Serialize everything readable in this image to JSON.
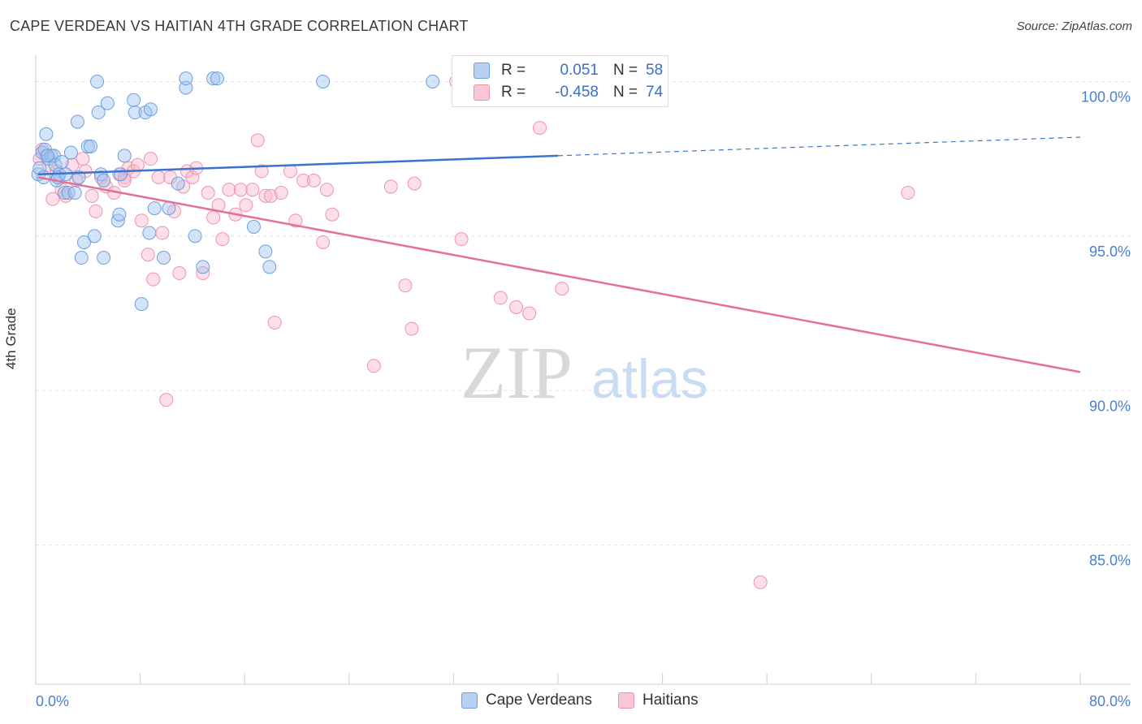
{
  "title": "CAPE VERDEAN VS HAITIAN 4TH GRADE CORRELATION CHART",
  "source": "Source: ZipAtlas.com",
  "watermark": {
    "zip": "ZIP",
    "atlas": "atlas"
  },
  "legend": {
    "rows": [
      {
        "r_label": "R =",
        "r_value": "0.051",
        "n_label": "N =",
        "n_value": "58"
      },
      {
        "r_label": "R =",
        "r_value": "-0.458",
        "n_label": "N =",
        "n_value": "74"
      }
    ]
  },
  "bottom_legend": {
    "series1": "Cape Verdeans",
    "series2": "Haitians"
  },
  "colors": {
    "blue": "#3a74d0",
    "pink": "#e4709a",
    "blue_fill": "#b8d1f3",
    "pink_fill": "#f9c6d5",
    "tick_label": "#4a80d0"
  },
  "chart_data": {
    "type": "scatter",
    "title": "CAPE VERDEAN VS HAITIAN 4TH GRADE CORRELATION CHART",
    "xlabel": "",
    "ylabel": "4th Grade",
    "xlim": [
      0,
      80
    ],
    "ylim": [
      80.5,
      100.8
    ],
    "x_tick_labels": [
      "0.0%",
      "80.0%"
    ],
    "y_ticks": [
      100,
      95,
      90,
      85
    ],
    "y_tick_labels": [
      "100.0%",
      "95.0%",
      "90.0%",
      "85.0%"
    ],
    "series": [
      {
        "name": "Cape Verdeans",
        "color": "#3a74d0",
        "R": 0.051,
        "N": 58,
        "trend": {
          "x1": 0.2,
          "y1": 97.0,
          "x2": 40,
          "y2": 97.6,
          "dash_to_x": 80,
          "dash_to_y": 98.2
        },
        "points": [
          [
            0.2,
            97.0
          ],
          [
            0.3,
            97.2
          ],
          [
            0.5,
            97.7
          ],
          [
            0.7,
            97.8
          ],
          [
            0.8,
            98.3
          ],
          [
            1.0,
            97.5
          ],
          [
            1.2,
            97.6
          ],
          [
            1.4,
            97.6
          ],
          [
            1.5,
            97.3
          ],
          [
            1.6,
            96.8
          ],
          [
            1.8,
            97.0
          ],
          [
            2.0,
            97.4
          ],
          [
            2.2,
            96.4
          ],
          [
            2.5,
            96.4
          ],
          [
            2.7,
            97.7
          ],
          [
            3.0,
            96.4
          ],
          [
            3.2,
            98.7
          ],
          [
            3.5,
            94.3
          ],
          [
            3.7,
            94.8
          ],
          [
            4.0,
            97.9
          ],
          [
            4.2,
            97.9
          ],
          [
            4.5,
            95.0
          ],
          [
            4.7,
            100.0
          ],
          [
            4.8,
            99.0
          ],
          [
            5.0,
            97.0
          ],
          [
            5.2,
            96.8
          ],
          [
            5.2,
            94.3
          ],
          [
            5.5,
            99.3
          ],
          [
            6.3,
            95.5
          ],
          [
            6.4,
            95.7
          ],
          [
            6.8,
            97.6
          ],
          [
            7.5,
            99.4
          ],
          [
            7.6,
            99.0
          ],
          [
            8.1,
            92.8
          ],
          [
            8.4,
            99.0
          ],
          [
            8.7,
            95.1
          ],
          [
            8.8,
            99.1
          ],
          [
            9.1,
            95.9
          ],
          [
            9.8,
            94.3
          ],
          [
            10.2,
            95.9
          ],
          [
            10.9,
            96.7
          ],
          [
            11.5,
            99.8
          ],
          [
            11.5,
            100.1
          ],
          [
            12.2,
            95.0
          ],
          [
            12.8,
            94.0
          ],
          [
            13.6,
            100.1
          ],
          [
            13.9,
            100.1
          ],
          [
            16.7,
            95.3
          ],
          [
            17.6,
            94.5
          ],
          [
            17.9,
            94.0
          ],
          [
            22.0,
            100.0
          ],
          [
            30.4,
            100.0
          ],
          [
            1.7,
            96.9
          ],
          [
            0.9,
            97.6
          ],
          [
            2.3,
            97.0
          ],
          [
            6.5,
            97.0
          ],
          [
            3.3,
            96.9
          ],
          [
            0.6,
            96.9
          ]
        ]
      },
      {
        "name": "Haitians",
        "color": "#e4709a",
        "R": -0.458,
        "N": 74,
        "trend": {
          "x1": 0.2,
          "y1": 96.9,
          "x2": 80,
          "y2": 90.6
        },
        "points": [
          [
            0.3,
            97.5
          ],
          [
            0.5,
            97.8
          ],
          [
            0.8,
            97.6
          ],
          [
            1.0,
            97.3
          ],
          [
            1.3,
            96.2
          ],
          [
            1.6,
            97.1
          ],
          [
            2.0,
            96.5
          ],
          [
            2.3,
            96.3
          ],
          [
            2.8,
            97.3
          ],
          [
            3.1,
            96.8
          ],
          [
            3.6,
            97.5
          ],
          [
            3.8,
            97.1
          ],
          [
            4.3,
            96.3
          ],
          [
            4.6,
            95.8
          ],
          [
            5.0,
            96.9
          ],
          [
            5.4,
            96.6
          ],
          [
            6.0,
            96.4
          ],
          [
            6.4,
            97.0
          ],
          [
            6.8,
            96.9
          ],
          [
            7.1,
            97.2
          ],
          [
            7.5,
            97.1
          ],
          [
            7.8,
            97.3
          ],
          [
            8.1,
            95.5
          ],
          [
            8.6,
            94.4
          ],
          [
            8.8,
            97.5
          ],
          [
            9.0,
            93.6
          ],
          [
            9.4,
            96.9
          ],
          [
            9.7,
            95.1
          ],
          [
            10.0,
            89.7
          ],
          [
            10.3,
            96.9
          ],
          [
            10.6,
            95.8
          ],
          [
            11.0,
            93.8
          ],
          [
            11.3,
            96.6
          ],
          [
            11.6,
            97.1
          ],
          [
            12.0,
            96.9
          ],
          [
            12.3,
            97.2
          ],
          [
            12.8,
            93.8
          ],
          [
            13.2,
            96.4
          ],
          [
            13.6,
            95.6
          ],
          [
            14.0,
            96.0
          ],
          [
            14.3,
            94.9
          ],
          [
            14.8,
            96.5
          ],
          [
            15.3,
            95.7
          ],
          [
            15.7,
            96.5
          ],
          [
            16.1,
            96.0
          ],
          [
            16.6,
            96.5
          ],
          [
            17.0,
            98.1
          ],
          [
            17.3,
            97.1
          ],
          [
            17.6,
            96.3
          ],
          [
            18.0,
            96.3
          ],
          [
            18.3,
            92.2
          ],
          [
            18.8,
            96.4
          ],
          [
            19.5,
            97.1
          ],
          [
            19.9,
            95.5
          ],
          [
            20.5,
            96.8
          ],
          [
            21.3,
            96.8
          ],
          [
            22.0,
            94.8
          ],
          [
            22.3,
            96.5
          ],
          [
            22.7,
            95.7
          ],
          [
            25.9,
            90.8
          ],
          [
            27.2,
            96.6
          ],
          [
            28.3,
            93.4
          ],
          [
            28.8,
            92.0
          ],
          [
            29.0,
            96.7
          ],
          [
            32.2,
            100.0
          ],
          [
            32.6,
            94.9
          ],
          [
            35.6,
            93.0
          ],
          [
            36.8,
            92.7
          ],
          [
            37.8,
            92.5
          ],
          [
            38.6,
            98.5
          ],
          [
            40.3,
            93.3
          ],
          [
            55.5,
            83.8
          ],
          [
            66.8,
            96.4
          ],
          [
            6.8,
            96.8
          ]
        ]
      }
    ]
  }
}
